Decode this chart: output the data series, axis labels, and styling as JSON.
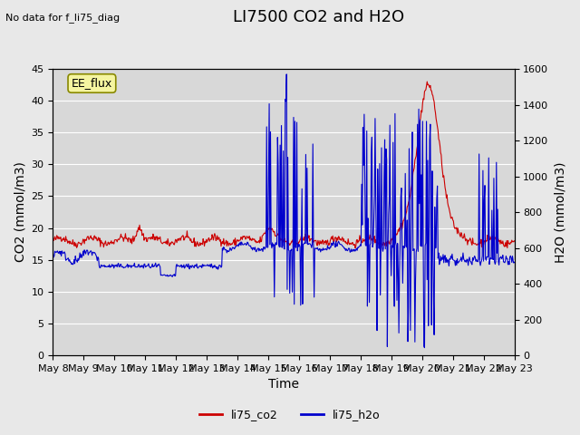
{
  "title": "LI7500 CO2 and H2O",
  "top_left_text": "No data for f_li75_diag",
  "annotation_box": "EE_flux",
  "xlabel": "Time",
  "ylabel_left": "CO2 (mmol/m3)",
  "ylabel_right": "H2O (mmol/m3)",
  "ylim_left": [
    0,
    45
  ],
  "ylim_right": [
    0,
    1600
  ],
  "yticks_left": [
    0,
    5,
    10,
    15,
    20,
    25,
    30,
    35,
    40,
    45
  ],
  "yticks_right": [
    0,
    200,
    400,
    600,
    800,
    1000,
    1200,
    1400,
    1600
  ],
  "xtick_labels": [
    "May 8",
    "May 9",
    "May 10",
    "May 11",
    "May 12",
    "May 13",
    "May 14",
    "May 15",
    "May 16",
    "May 17",
    "May 18",
    "May 19",
    "May 20",
    "May 21",
    "May 22",
    "May 23"
  ],
  "n_days": 15,
  "co2_color": "#cc0000",
  "h2o_color": "#0000cc",
  "background_color": "#e8e8e8",
  "plot_bg_color": "#d8d8d8",
  "legend_entries": [
    "li75_co2",
    "li75_h2o"
  ],
  "annotation_box_facecolor": "#f5f5a0",
  "annotation_box_edgecolor": "#888800",
  "title_fontsize": 13,
  "axis_label_fontsize": 10,
  "tick_fontsize": 8,
  "legend_fontsize": 9
}
